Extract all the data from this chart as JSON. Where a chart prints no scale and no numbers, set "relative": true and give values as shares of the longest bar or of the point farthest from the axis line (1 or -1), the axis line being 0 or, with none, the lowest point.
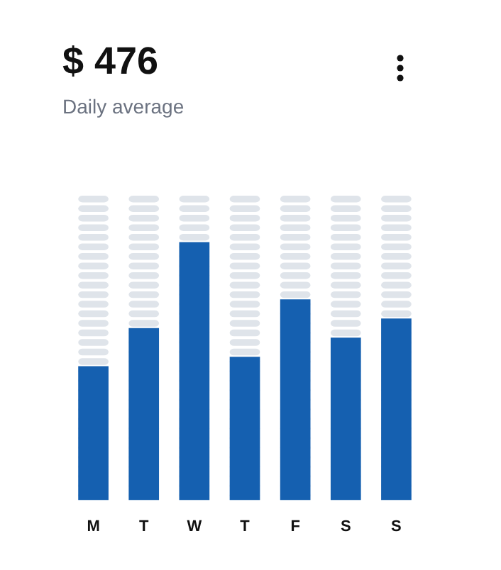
{
  "chart_data": {
    "type": "bar",
    "title": "$ 476",
    "subtitle": "Daily average",
    "relative": true,
    "categories": [
      "M",
      "T",
      "W",
      "T",
      "F",
      "S",
      "S"
    ],
    "values": [
      0.519,
      0.667,
      1,
      0.556,
      0.778,
      0.63,
      0.704
    ],
    "color": "#1560b0",
    "grid": false,
    "legend": false
  }
}
